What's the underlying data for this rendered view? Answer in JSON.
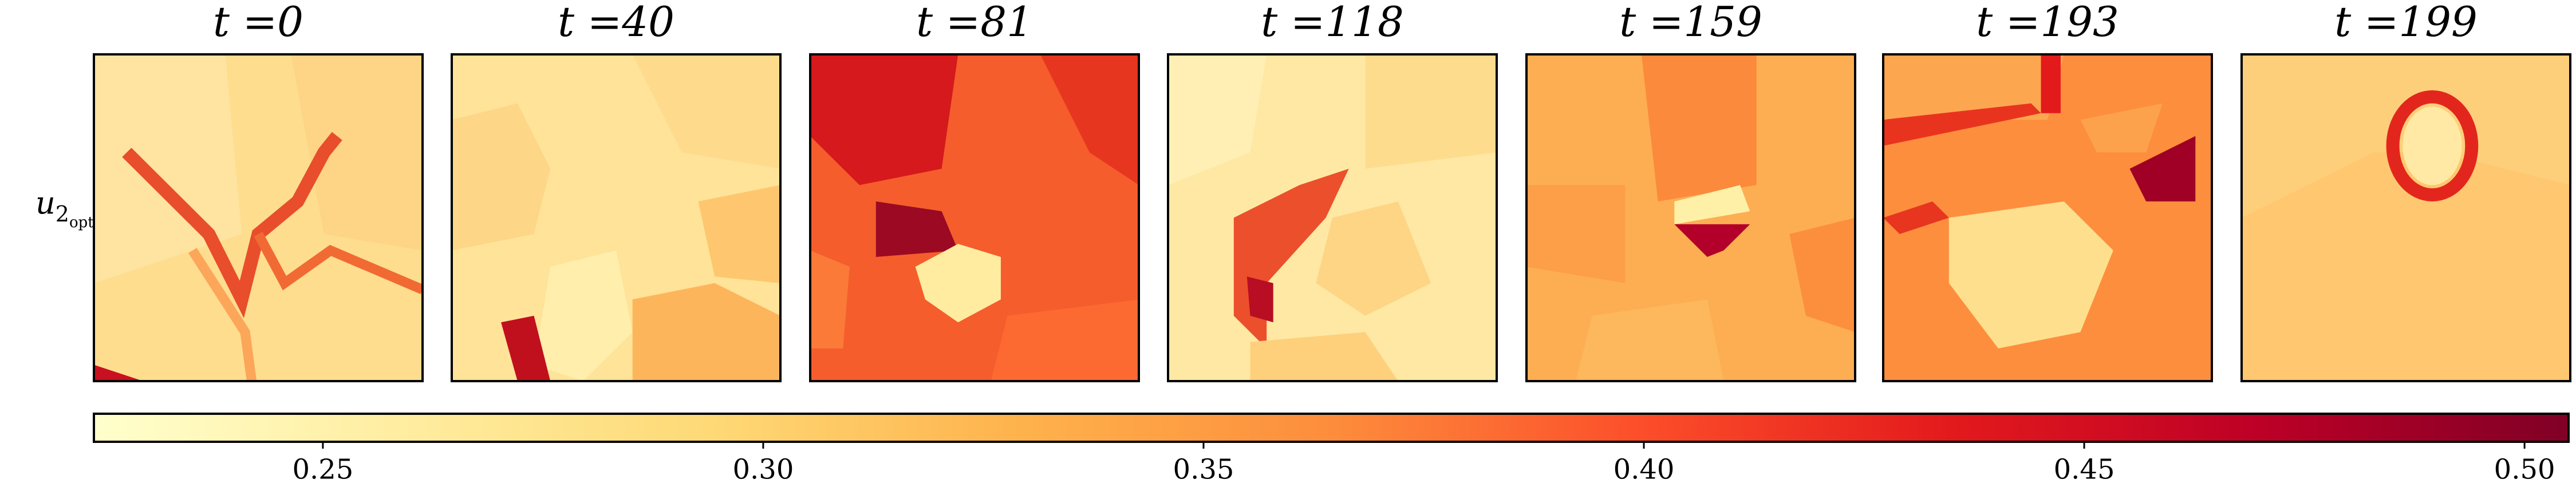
{
  "chart_data": {
    "type": "heatmap-grid",
    "panels": [
      {
        "title": "t =0"
      },
      {
        "title": "t =40"
      },
      {
        "title": "t =81"
      },
      {
        "title": "t =118"
      },
      {
        "title": "t =159"
      },
      {
        "title": "t =193"
      },
      {
        "title": "t =199"
      }
    ],
    "row_label": {
      "base": "u",
      "sub": "2",
      "subsub": "opt"
    },
    "colorbar": {
      "clim": [
        0.224,
        0.505
      ],
      "ticks": [
        0.25,
        {
          "value": 0.3,
          "label": "0.30"
        },
        0.35,
        {
          "value": 0.4,
          "label": "0.40"
        },
        0.45,
        {
          "value": 0.5,
          "label": "0.50"
        }
      ],
      "colormap": [
        "#ffffcc",
        "#ffeda0",
        "#fed976",
        "#feb24c",
        "#fd8d3c",
        "#fc4e2a",
        "#e31a1c",
        "#bd0026",
        "#800026"
      ]
    }
  }
}
